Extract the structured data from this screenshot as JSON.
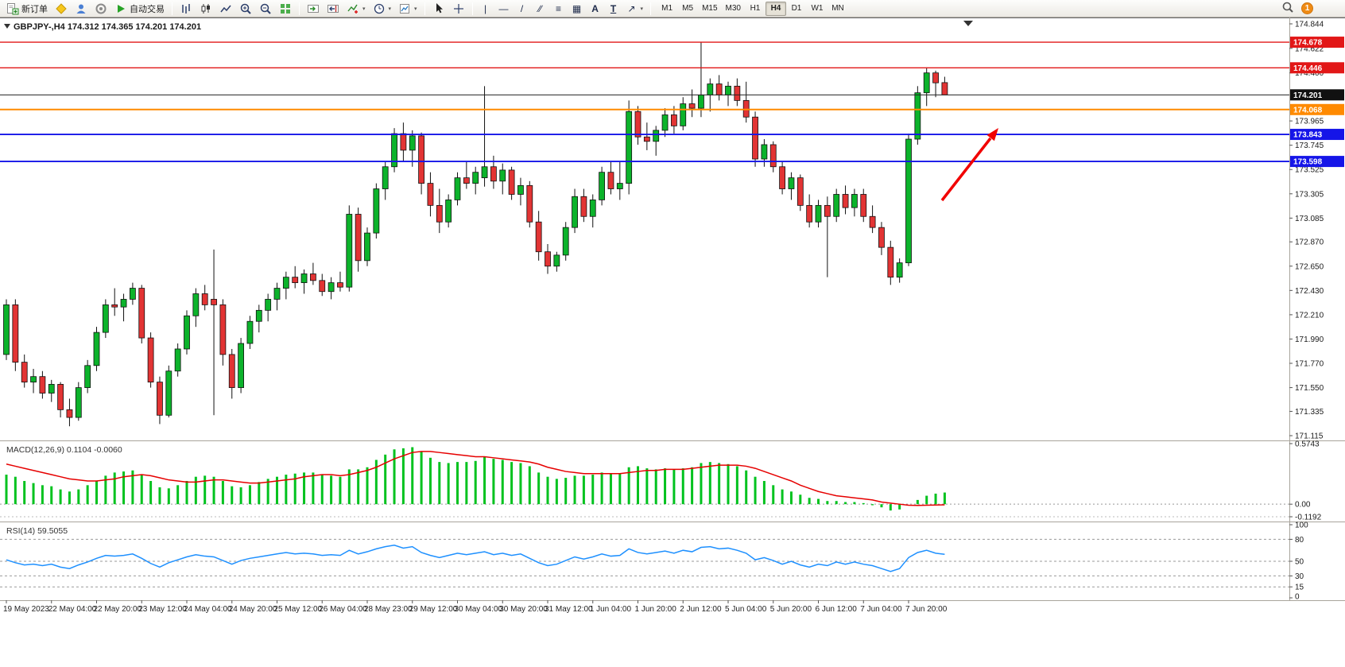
{
  "toolbar": {
    "new_order_label": "新订单",
    "auto_trading_label": "自动交易",
    "timeframes": [
      "M1",
      "M5",
      "M15",
      "M30",
      "H1",
      "H4",
      "D1",
      "W1",
      "MN"
    ],
    "active_timeframe": "H4",
    "notification_count": "1"
  },
  "icons": {
    "vline": "|",
    "hline": "—",
    "trendline": "/",
    "channel": "∕∕",
    "fibonacci": "≡",
    "shapes": "▦",
    "text": "A",
    "label": "T",
    "arrows": "↗",
    "caret": "▾"
  },
  "header": {
    "symbol": "GBPJPY-,H4",
    "open": "174.312",
    "high": "174.365",
    "low": "174.201",
    "close": "174.201"
  },
  "chart_data": {
    "type": "candlestick",
    "symbol": "GBPJPY",
    "timeframe": "H4",
    "candle_up_color": "#0cb32b",
    "candle_down_color": "#e23434",
    "y_range": [
      171.115,
      174.844
    ],
    "y_ticks": [
      174.844,
      174.622,
      174.4,
      173.965,
      173.745,
      173.525,
      173.305,
      173.085,
      172.87,
      172.65,
      172.43,
      172.21,
      171.99,
      171.77,
      171.55,
      171.335,
      171.115
    ],
    "hlines": [
      {
        "price": 174.678,
        "color": "#e21717",
        "width": 1.4,
        "tag": "#e21717"
      },
      {
        "price": 174.446,
        "color": "#e21717",
        "width": 1.4,
        "tag": "#e21717"
      },
      {
        "price": 174.201,
        "color": "#222222",
        "width": 1,
        "tag": "#111111",
        "current": true
      },
      {
        "price": 174.068,
        "color": "#ff8a00",
        "width": 2,
        "tag": "#ff8a00"
      },
      {
        "price": 173.843,
        "color": "#1515e8",
        "width": 1.8,
        "tag": "#1515e8"
      },
      {
        "price": 173.598,
        "color": "#1515e8",
        "width": 1.8,
        "tag": "#1515e8"
      }
    ],
    "ohlc": [
      [
        171.85,
        172.35,
        171.8,
        172.3
      ],
      [
        172.3,
        172.35,
        171.7,
        171.78
      ],
      [
        171.78,
        171.85,
        171.55,
        171.6
      ],
      [
        171.6,
        171.72,
        171.5,
        171.65
      ],
      [
        171.65,
        171.7,
        171.45,
        171.5
      ],
      [
        171.5,
        171.62,
        171.42,
        171.58
      ],
      [
        171.58,
        171.6,
        171.28,
        171.35
      ],
      [
        171.35,
        171.45,
        171.2,
        171.28
      ],
      [
        171.28,
        171.6,
        171.25,
        171.55
      ],
      [
        171.55,
        171.8,
        171.5,
        171.75
      ],
      [
        171.75,
        172.1,
        171.7,
        172.05
      ],
      [
        172.05,
        172.35,
        172.0,
        172.3
      ],
      [
        172.3,
        172.45,
        172.2,
        172.28
      ],
      [
        172.28,
        172.4,
        172.15,
        172.35
      ],
      [
        172.35,
        172.5,
        172.3,
        172.45
      ],
      [
        172.45,
        172.48,
        171.95,
        172.0
      ],
      [
        172.0,
        172.05,
        171.55,
        171.6
      ],
      [
        171.6,
        171.65,
        171.22,
        171.3
      ],
      [
        171.3,
        171.75,
        171.28,
        171.7
      ],
      [
        171.7,
        171.95,
        171.65,
        171.9
      ],
      [
        171.9,
        172.25,
        171.85,
        172.2
      ],
      [
        172.2,
        172.45,
        172.1,
        172.4
      ],
      [
        172.4,
        172.48,
        172.25,
        172.3
      ],
      [
        172.35,
        172.8,
        171.3,
        172.3
      ],
      [
        172.3,
        172.35,
        171.75,
        171.85
      ],
      [
        171.85,
        171.9,
        171.45,
        171.55
      ],
      [
        171.55,
        172.0,
        171.5,
        171.95
      ],
      [
        171.95,
        172.2,
        171.9,
        172.15
      ],
      [
        172.15,
        172.3,
        172.05,
        172.25
      ],
      [
        172.25,
        172.4,
        172.15,
        172.35
      ],
      [
        172.35,
        172.5,
        172.25,
        172.45
      ],
      [
        172.45,
        172.6,
        172.35,
        172.55
      ],
      [
        172.55,
        172.65,
        172.45,
        172.5
      ],
      [
        172.5,
        172.62,
        172.4,
        172.58
      ],
      [
        172.58,
        172.68,
        172.48,
        172.52
      ],
      [
        172.52,
        172.58,
        172.38,
        172.42
      ],
      [
        172.42,
        172.55,
        172.35,
        172.5
      ],
      [
        172.5,
        172.6,
        172.42,
        172.46
      ],
      [
        172.46,
        173.2,
        172.42,
        173.12
      ],
      [
        173.12,
        173.18,
        172.6,
        172.7
      ],
      [
        172.7,
        173.0,
        172.65,
        172.95
      ],
      [
        172.95,
        173.4,
        172.9,
        173.35
      ],
      [
        173.35,
        173.6,
        173.25,
        173.55
      ],
      [
        173.55,
        173.9,
        173.5,
        173.85
      ],
      [
        173.85,
        173.95,
        173.6,
        173.7
      ],
      [
        173.7,
        173.88,
        173.55,
        173.83
      ],
      [
        173.83,
        173.86,
        173.3,
        173.4
      ],
      [
        173.4,
        173.5,
        173.1,
        173.2
      ],
      [
        173.2,
        173.35,
        172.95,
        173.05
      ],
      [
        173.05,
        173.3,
        173.0,
        173.25
      ],
      [
        173.25,
        173.5,
        173.2,
        173.45
      ],
      [
        173.45,
        173.6,
        173.35,
        173.4
      ],
      [
        173.4,
        173.55,
        173.3,
        173.5
      ],
      [
        173.45,
        174.28,
        173.37,
        173.55
      ],
      [
        173.55,
        173.65,
        173.35,
        173.42
      ],
      [
        173.42,
        173.58,
        173.3,
        173.52
      ],
      [
        173.52,
        173.55,
        173.25,
        173.3
      ],
      [
        173.3,
        173.45,
        173.2,
        173.38
      ],
      [
        173.38,
        173.42,
        173.0,
        173.05
      ],
      [
        173.05,
        173.15,
        172.7,
        172.78
      ],
      [
        172.78,
        172.85,
        172.58,
        172.65
      ],
      [
        172.65,
        172.78,
        172.6,
        172.75
      ],
      [
        172.75,
        173.05,
        172.7,
        173.0
      ],
      [
        173.0,
        173.35,
        172.95,
        173.28
      ],
      [
        173.28,
        173.35,
        173.05,
        173.1
      ],
      [
        173.1,
        173.3,
        173.0,
        173.25
      ],
      [
        173.25,
        173.55,
        173.2,
        173.5
      ],
      [
        173.5,
        173.6,
        173.3,
        173.35
      ],
      [
        173.35,
        173.6,
        173.25,
        173.4
      ],
      [
        173.4,
        174.15,
        173.3,
        174.05
      ],
      [
        174.05,
        174.1,
        173.75,
        173.82
      ],
      [
        173.82,
        173.95,
        173.7,
        173.78
      ],
      [
        173.78,
        173.92,
        173.65,
        173.88
      ],
      [
        173.88,
        174.08,
        173.82,
        174.02
      ],
      [
        174.02,
        174.1,
        173.85,
        173.92
      ],
      [
        173.92,
        174.18,
        173.88,
        174.12
      ],
      [
        174.12,
        174.25,
        174.0,
        174.08
      ],
      [
        174.08,
        174.68,
        174.0,
        174.2
      ],
      [
        174.2,
        174.35,
        174.05,
        174.3
      ],
      [
        174.3,
        174.38,
        174.15,
        174.2
      ],
      [
        174.2,
        174.32,
        174.1,
        174.28
      ],
      [
        174.28,
        174.35,
        174.1,
        174.15
      ],
      [
        174.15,
        174.32,
        173.95,
        174.0
      ],
      [
        174.0,
        174.05,
        173.55,
        173.62
      ],
      [
        173.62,
        173.8,
        173.55,
        173.75
      ],
      [
        173.75,
        173.78,
        173.5,
        173.55
      ],
      [
        173.55,
        173.6,
        173.3,
        173.35
      ],
      [
        173.35,
        173.5,
        173.25,
        173.45
      ],
      [
        173.45,
        173.48,
        173.15,
        173.2
      ],
      [
        173.2,
        173.3,
        173.0,
        173.05
      ],
      [
        173.05,
        173.25,
        173.0,
        173.2
      ],
      [
        173.2,
        173.28,
        172.55,
        173.1
      ],
      [
        173.1,
        173.35,
        173.05,
        173.3
      ],
      [
        173.3,
        173.38,
        173.12,
        173.18
      ],
      [
        173.18,
        173.35,
        173.1,
        173.3
      ],
      [
        173.3,
        173.35,
        173.05,
        173.1
      ],
      [
        173.1,
        173.2,
        172.95,
        173.0
      ],
      [
        173.0,
        173.05,
        172.75,
        172.82
      ],
      [
        172.82,
        172.88,
        172.48,
        172.55
      ],
      [
        172.55,
        172.72,
        172.5,
        172.68
      ],
      [
        172.68,
        173.85,
        172.65,
        173.8
      ],
      [
        173.8,
        174.28,
        173.75,
        174.22
      ],
      [
        174.22,
        174.45,
        174.1,
        174.4
      ],
      [
        174.4,
        174.42,
        174.18,
        174.31
      ],
      [
        174.312,
        174.365,
        174.201,
        174.201
      ]
    ],
    "x_labels": [
      {
        "i": 0,
        "t": "19 May 2023"
      },
      {
        "i": 5,
        "t": "22 May 04:00"
      },
      {
        "i": 10,
        "t": "22 May 20:00"
      },
      {
        "i": 15,
        "t": "23 May 12:00"
      },
      {
        "i": 20,
        "t": "24 May 04:00"
      },
      {
        "i": 25,
        "t": "24 May 20:00"
      },
      {
        "i": 30,
        "t": "25 May 12:00"
      },
      {
        "i": 35,
        "t": "26 May 04:00"
      },
      {
        "i": 40,
        "t": "28 May 23:00"
      },
      {
        "i": 45,
        "t": "29 May 12:00"
      },
      {
        "i": 50,
        "t": "30 May 04:00"
      },
      {
        "i": 55,
        "t": "30 May 20:00"
      },
      {
        "i": 60,
        "t": "31 May 12:00"
      },
      {
        "i": 65,
        "t": "1 Jun 04:00"
      },
      {
        "i": 70,
        "t": "1 Jun 20:00"
      },
      {
        "i": 75,
        "t": "2 Jun 12:00"
      },
      {
        "i": 80,
        "t": "5 Jun 04:00"
      },
      {
        "i": 85,
        "t": "5 Jun 20:00"
      },
      {
        "i": 90,
        "t": "6 Jun 12:00"
      },
      {
        "i": 95,
        "t": "7 Jun 04:00"
      },
      {
        "i": 100,
        "t": "7 Jun 20:00"
      }
    ],
    "macd": {
      "label": "MACD(12,26,9)",
      "value": "0.1104",
      "signal_value": "-0.0060",
      "y_max": 0.5743,
      "y_min": -0.1192,
      "y_ticks": [
        {
          "v": 0.5743,
          "label": "0.5743"
        },
        {
          "v": 0,
          "label": "0.00"
        },
        {
          "v": -0.1192,
          "label": "-0.1192"
        }
      ],
      "histogram_color": "#00c21e",
      "signal_color": "#e60000",
      "histogram": [
        0.28,
        0.26,
        0.22,
        0.2,
        0.18,
        0.17,
        0.14,
        0.12,
        0.14,
        0.18,
        0.22,
        0.27,
        0.3,
        0.31,
        0.32,
        0.28,
        0.22,
        0.16,
        0.15,
        0.18,
        0.22,
        0.26,
        0.27,
        0.26,
        0.22,
        0.17,
        0.16,
        0.18,
        0.21,
        0.24,
        0.26,
        0.28,
        0.29,
        0.3,
        0.3,
        0.28,
        0.27,
        0.26,
        0.33,
        0.33,
        0.35,
        0.42,
        0.47,
        0.52,
        0.53,
        0.54,
        0.5,
        0.44,
        0.4,
        0.39,
        0.4,
        0.4,
        0.41,
        0.45,
        0.43,
        0.42,
        0.4,
        0.39,
        0.36,
        0.3,
        0.26,
        0.24,
        0.25,
        0.27,
        0.27,
        0.28,
        0.3,
        0.29,
        0.29,
        0.35,
        0.36,
        0.34,
        0.33,
        0.34,
        0.33,
        0.34,
        0.35,
        0.39,
        0.4,
        0.39,
        0.38,
        0.36,
        0.32,
        0.26,
        0.22,
        0.18,
        0.14,
        0.12,
        0.09,
        0.06,
        0.05,
        0.03,
        0.03,
        0.02,
        0.02,
        0.01,
        -0.01,
        -0.03,
        -0.06,
        -0.05,
        0.0,
        0.04,
        0.08,
        0.1,
        0.1104
      ],
      "signal": [
        0.38,
        0.36,
        0.34,
        0.32,
        0.3,
        0.28,
        0.26,
        0.24,
        0.23,
        0.22,
        0.22,
        0.23,
        0.24,
        0.26,
        0.27,
        0.28,
        0.27,
        0.25,
        0.23,
        0.22,
        0.21,
        0.21,
        0.22,
        0.23,
        0.23,
        0.22,
        0.21,
        0.2,
        0.2,
        0.21,
        0.22,
        0.23,
        0.24,
        0.26,
        0.27,
        0.28,
        0.28,
        0.27,
        0.28,
        0.3,
        0.32,
        0.35,
        0.39,
        0.43,
        0.46,
        0.49,
        0.5,
        0.5,
        0.49,
        0.48,
        0.47,
        0.46,
        0.45,
        0.45,
        0.44,
        0.43,
        0.42,
        0.41,
        0.4,
        0.38,
        0.35,
        0.33,
        0.31,
        0.3,
        0.29,
        0.29,
        0.29,
        0.29,
        0.29,
        0.3,
        0.31,
        0.32,
        0.32,
        0.33,
        0.33,
        0.33,
        0.34,
        0.35,
        0.36,
        0.37,
        0.37,
        0.37,
        0.36,
        0.34,
        0.31,
        0.28,
        0.25,
        0.22,
        0.18,
        0.15,
        0.12,
        0.1,
        0.08,
        0.07,
        0.06,
        0.05,
        0.04,
        0.02,
        0.01,
        0.0,
        -0.01,
        -0.012,
        -0.01,
        -0.008,
        -0.006
      ]
    },
    "rsi": {
      "label": "RSI(14)",
      "value": "59.5055",
      "line_color": "#1e90ff",
      "levels": [
        80,
        50,
        30,
        15
      ],
      "y_ticks": [
        100,
        80,
        50,
        30,
        15,
        0
      ],
      "values": [
        52,
        48,
        45,
        46,
        44,
        46,
        42,
        40,
        45,
        49,
        54,
        58,
        57,
        58,
        60,
        54,
        47,
        42,
        48,
        52,
        56,
        59,
        57,
        56,
        51,
        46,
        51,
        54,
        56,
        58,
        60,
        62,
        60,
        61,
        60,
        58,
        59,
        58,
        65,
        60,
        63,
        67,
        70,
        72,
        68,
        70,
        62,
        58,
        55,
        58,
        61,
        59,
        61,
        63,
        59,
        61,
        58,
        60,
        54,
        48,
        44,
        46,
        51,
        56,
        53,
        56,
        60,
        57,
        58,
        67,
        62,
        60,
        62,
        64,
        61,
        65,
        63,
        69,
        70,
        67,
        68,
        65,
        61,
        52,
        55,
        51,
        46,
        50,
        45,
        42,
        46,
        44,
        49,
        46,
        49,
        46,
        44,
        40,
        36,
        40,
        55,
        62,
        65,
        61,
        59.5
      ]
    },
    "arrow": {
      "color": "#f10000",
      "direction": "up-right"
    }
  }
}
